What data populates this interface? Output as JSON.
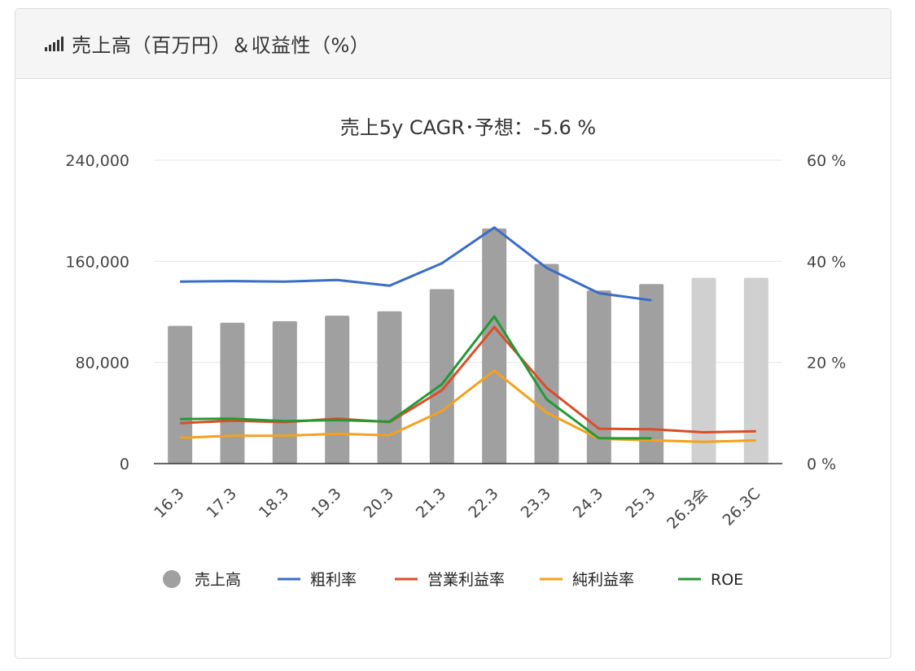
{
  "header": {
    "title": "売上高（百万円）＆収益性（%）",
    "icon": "signal-bars-icon"
  },
  "chart_data": {
    "type": "bar",
    "title": "売上5y CAGR･予想：-5.6 %",
    "categories": [
      "16.3",
      "17.3",
      "18.3",
      "19.3",
      "20.3",
      "21.3",
      "22.3",
      "23.3",
      "24.3",
      "25.3",
      "26.3会",
      "26.3C"
    ],
    "y_left": {
      "ticks": [
        "0",
        "80,000",
        "160,000",
        "240,000"
      ],
      "range": [
        0,
        240000
      ]
    },
    "y_right": {
      "ticks": [
        "0 %",
        "20 %",
        "40 %",
        "60 %"
      ],
      "range": [
        0,
        60
      ]
    },
    "bars": {
      "name": "売上高",
      "values": [
        109000,
        111500,
        112700,
        117000,
        120500,
        138000,
        186000,
        158000,
        137000,
        142000,
        147000,
        147000
      ],
      "color": "#a0a0a0",
      "forecast_color": "#d0d0d0",
      "forecast_from_index": 10
    },
    "series": [
      {
        "name": "粗利率",
        "color": "#3b6cc6",
        "values": [
          36.0,
          36.1,
          36.0,
          36.3,
          35.2,
          39.6,
          46.7,
          38.7,
          33.7,
          32.3,
          null,
          null
        ]
      },
      {
        "name": "営業利益率",
        "color": "#db4c28",
        "values": [
          8.0,
          8.5,
          8.2,
          8.9,
          8.2,
          14.5,
          27.0,
          15.0,
          6.9,
          6.8,
          6.2,
          6.4
        ]
      },
      {
        "name": "純利益率",
        "color": "#f4a11d",
        "values": [
          5.1,
          5.5,
          5.5,
          5.9,
          5.6,
          10.4,
          18.4,
          10.1,
          4.9,
          4.6,
          4.3,
          4.6
        ]
      },
      {
        "name": "ROE",
        "color": "#239a36",
        "values": [
          8.8,
          8.9,
          8.4,
          8.6,
          8.3,
          15.7,
          29.1,
          12.7,
          5.0,
          5.0,
          null,
          null
        ]
      }
    ],
    "legend": {
      "position": "bottom"
    },
    "grid": true
  }
}
